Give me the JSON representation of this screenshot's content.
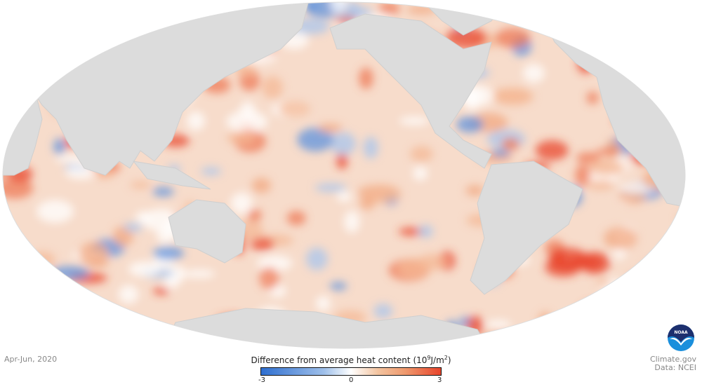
{
  "date_label": "Apr-Jun, 2020",
  "legend": {
    "title": "Difference from average heat content",
    "unit_base": "(10",
    "unit_exp": "9",
    "unit_mid": "J/m",
    "unit_exp2": "2",
    "unit_end": ")",
    "ticks": [
      "-3",
      "0",
      "3"
    ],
    "min": -3,
    "max": 3,
    "colors": {
      "low": "#2f6fd0",
      "mid": "#ffffff",
      "high": "#e8452c"
    }
  },
  "credit": {
    "source": "Climate.gov",
    "data": "Data: NCEI"
  },
  "logo": {
    "text": "NOAA"
  },
  "colors": {
    "land": "#dcdcdc",
    "ocean_base": "#f7dccb"
  }
}
